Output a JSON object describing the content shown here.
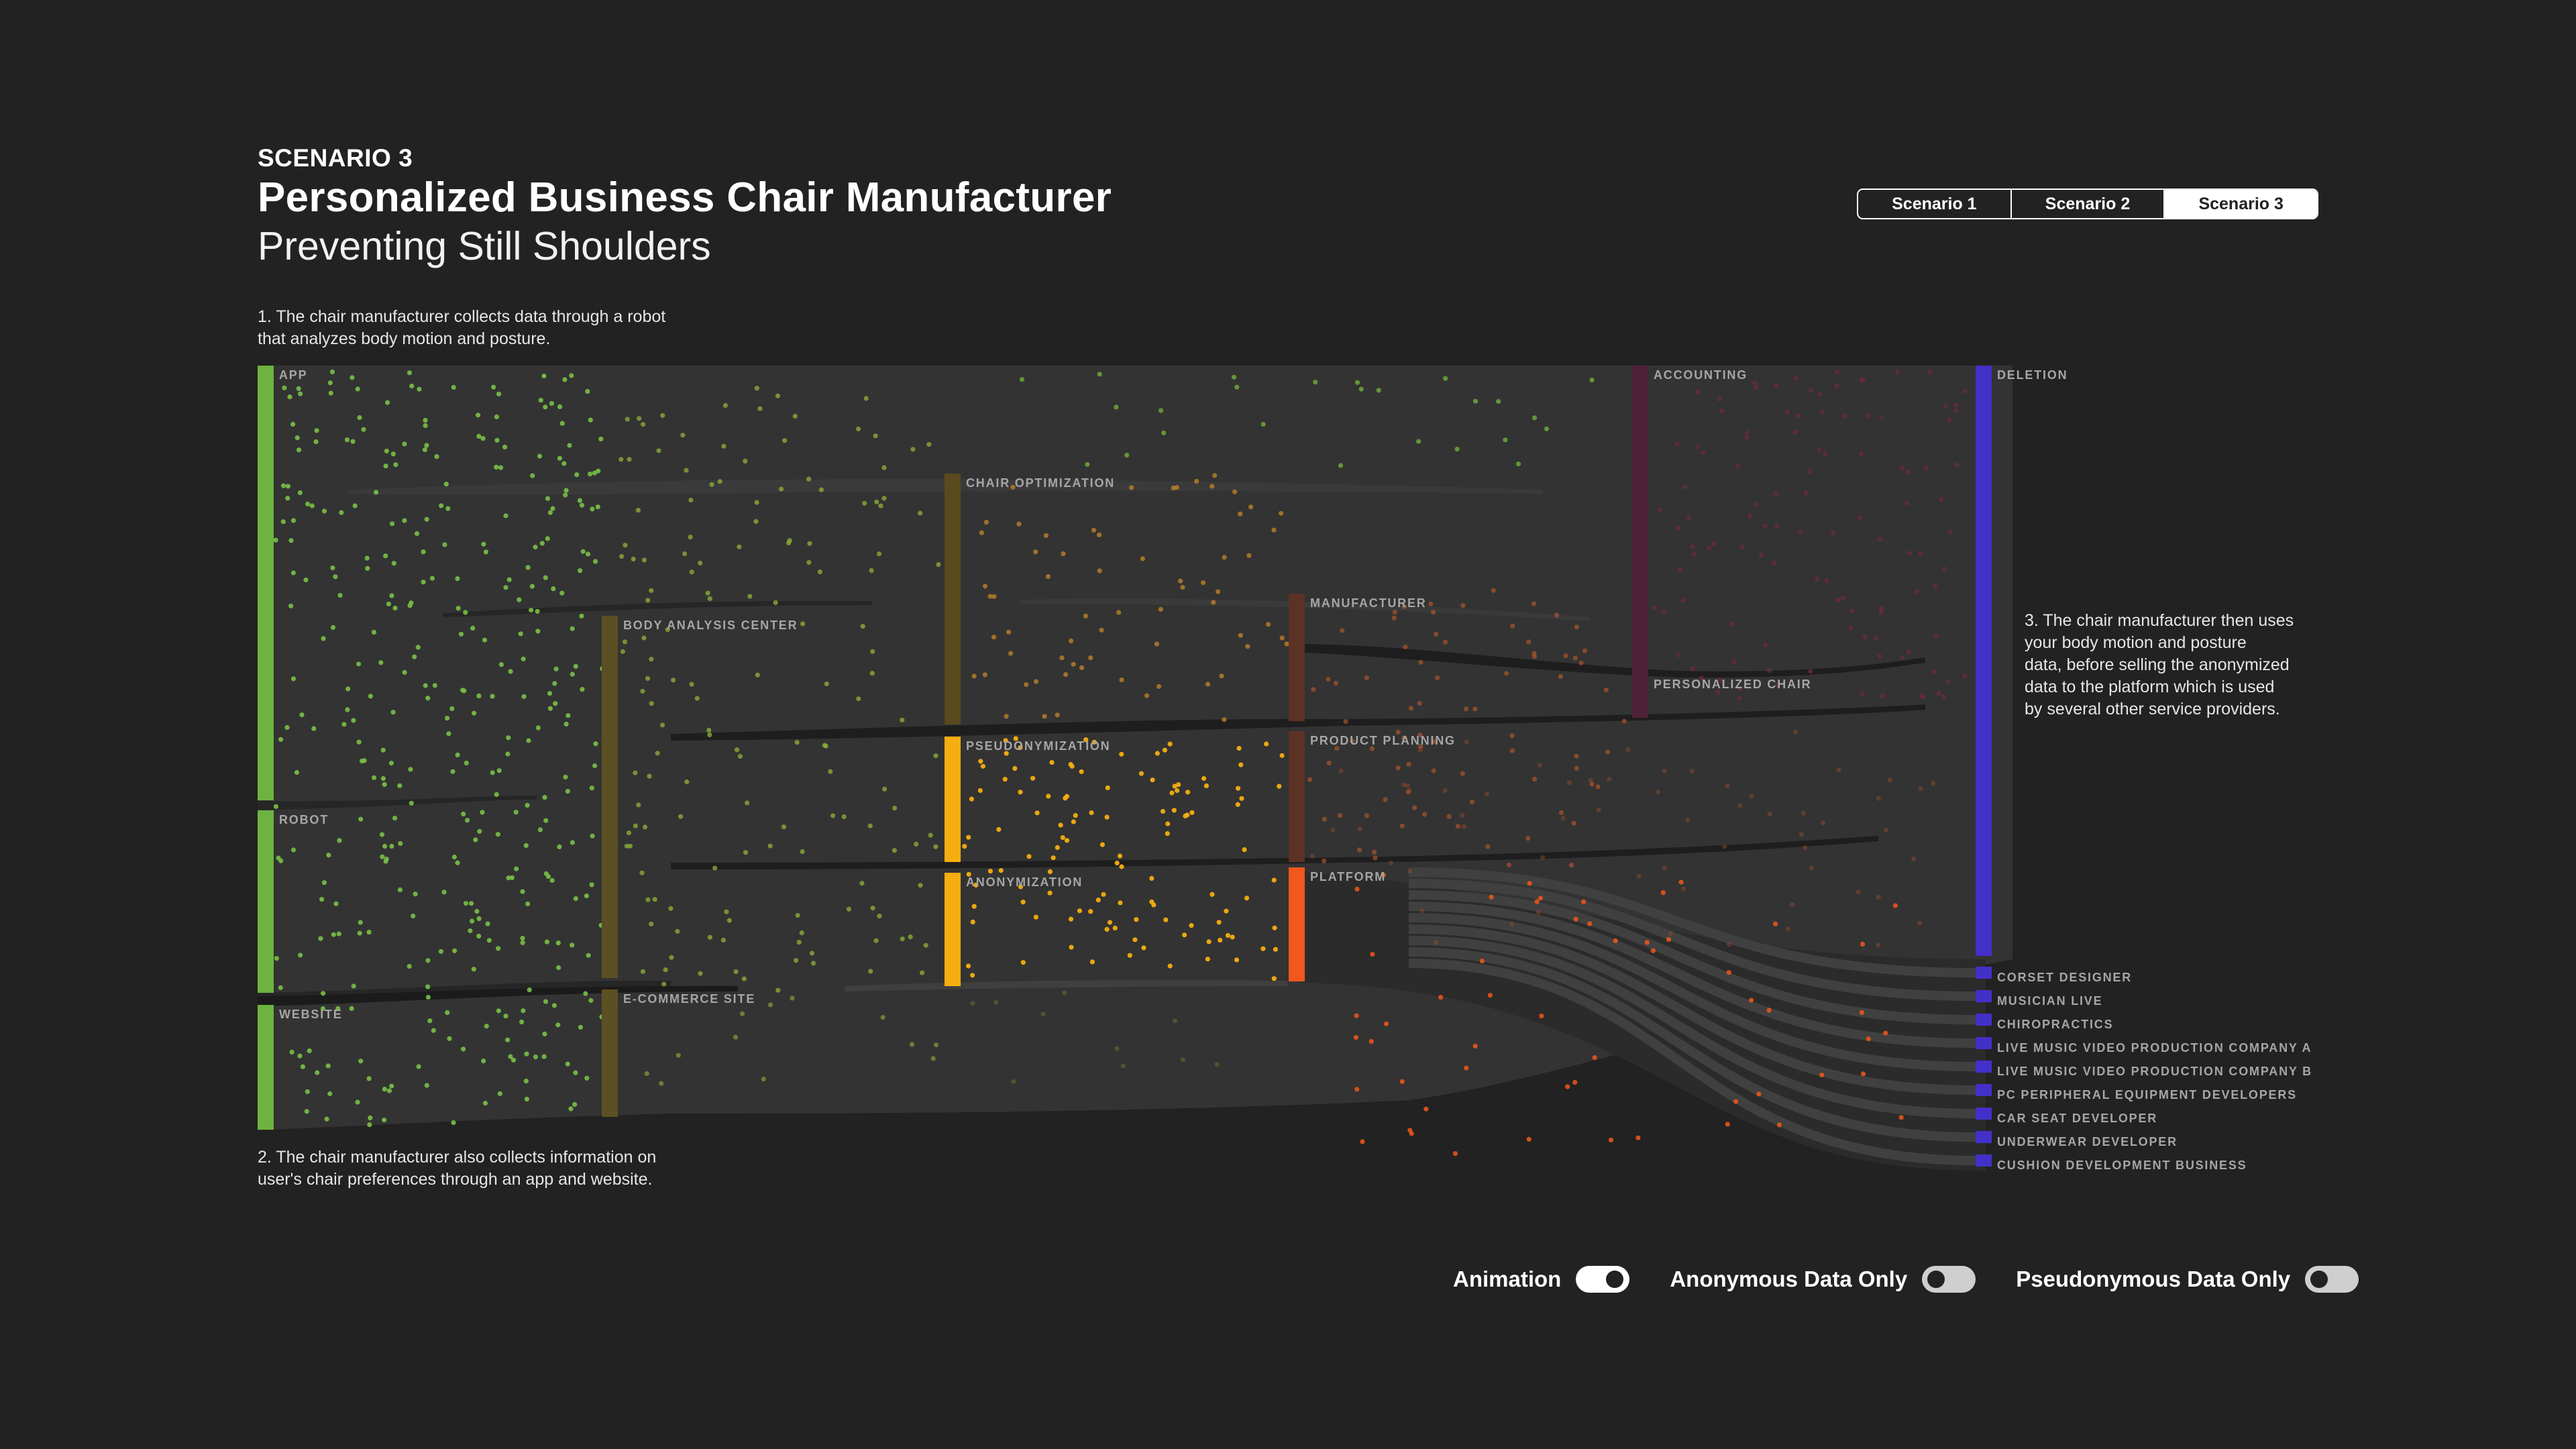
{
  "header": {
    "kicker": "SCENARIO 3",
    "title": "Personalized Business Chair Manufacturer",
    "subtitle": "Preventing Still Shoulders"
  },
  "tabs": [
    {
      "label": "Scenario 1",
      "active": false
    },
    {
      "label": "Scenario 2",
      "active": false
    },
    {
      "label": "Scenario 3",
      "active": true
    }
  ],
  "notes": {
    "note1": "1. The chair manufacturer collects data through a robot\n    that analyzes body motion and posture.",
    "note2": "2. The chair manufacturer also collects information on\n    user's chair preferences through an app and website.",
    "note3": "3. The chair manufacturer then uses\n    your body motion and posture\n    data, before selling the anonymized\n    data to the platform which is used\n    by several other service providers."
  },
  "colors": {
    "source": "#6db33f",
    "processing": "#5a5023",
    "yellow": "#f5ae10",
    "manufacturer": "#5c3225",
    "platform": "#f2571b",
    "accounting": "#4d2238",
    "deletion": "#4330c9"
  },
  "nodes": [
    {
      "id": "app",
      "label": "APP",
      "color": "#6db33f"
    },
    {
      "id": "robot",
      "label": "ROBOT",
      "color": "#6db33f"
    },
    {
      "id": "website",
      "label": "WEBSITE",
      "color": "#6db33f"
    },
    {
      "id": "body_analysis_center",
      "label": "BODY ANALYSIS CENTER",
      "color": "#5a5023"
    },
    {
      "id": "ecommerce_site",
      "label": "E-COMMERCE SITE",
      "color": "#5a5023"
    },
    {
      "id": "chair_optimization",
      "label": "CHAIR OPTIMIZATION",
      "color": "#5a4a1e"
    },
    {
      "id": "pseudonymization",
      "label": "PSEUDONYMIZATION",
      "color": "#f5ae10"
    },
    {
      "id": "anonymization",
      "label": "ANONYMIZATION",
      "color": "#f5ae10"
    },
    {
      "id": "manufacturer",
      "label": "MANUFACTURER",
      "color": "#5c3225"
    },
    {
      "id": "product_planning",
      "label": "PRODUCT PLANNING",
      "color": "#5c3225"
    },
    {
      "id": "platform",
      "label": "PLATFORM",
      "color": "#f2571b"
    },
    {
      "id": "accounting",
      "label": "ACCOUNTING",
      "color": "#4d2238"
    },
    {
      "id": "personalized_chair",
      "label": "PERSONALIZED CHAIR",
      "color": "#4d2238"
    },
    {
      "id": "deletion",
      "label": "DELETION",
      "color": "#4330c9"
    },
    {
      "id": "corset_designer",
      "label": "CORSET DESIGNER",
      "color": "#4330c9"
    },
    {
      "id": "musician_live",
      "label": "MUSICIAN LIVE",
      "color": "#4330c9"
    },
    {
      "id": "chiropractics",
      "label": "CHIROPRACTICS",
      "color": "#4330c9"
    },
    {
      "id": "lmv_a",
      "label": "LIVE MUSIC VIDEO PRODUCTION COMPANY A",
      "color": "#4330c9"
    },
    {
      "id": "lmv_b",
      "label": "LIVE MUSIC VIDEO PRODUCTION COMPANY B",
      "color": "#4330c9"
    },
    {
      "id": "pc_peripheral",
      "label": "PC PERIPHERAL EQUIPMENT DEVELOPERS",
      "color": "#4330c9"
    },
    {
      "id": "car_seat",
      "label": "CAR SEAT DEVELOPER",
      "color": "#4330c9"
    },
    {
      "id": "underwear",
      "label": "UNDERWEAR DEVELOPER",
      "color": "#4330c9"
    },
    {
      "id": "cushion",
      "label": "CUSHION DEVELOPMENT BUSINESS",
      "color": "#4330c9"
    }
  ],
  "toggles": [
    {
      "label": "Animation",
      "on": true
    },
    {
      "label": "Anonymous Data Only",
      "on": false
    },
    {
      "label": "Pseudonymous Data Only",
      "on": false
    }
  ]
}
